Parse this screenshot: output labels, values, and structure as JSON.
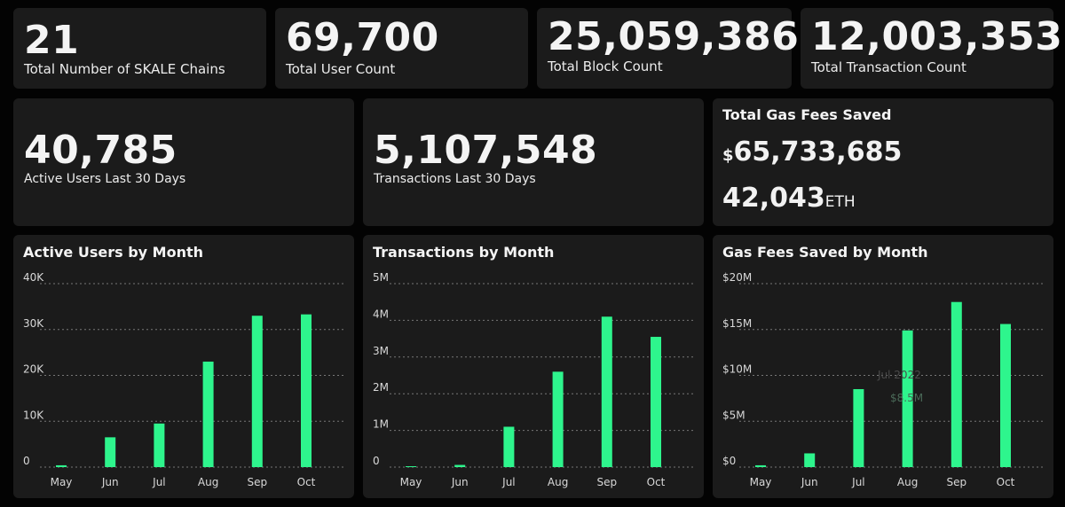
{
  "stats": {
    "chains": {
      "value": "21",
      "label": "Total Number of SKALE Chains"
    },
    "users": {
      "value": "69,700",
      "label": "Total User Count"
    },
    "blocks": {
      "value": "25,059,386",
      "label": "Total Block Count"
    },
    "transactions": {
      "value": "12,003,353",
      "label": "Total Transaction Count"
    },
    "active_30": {
      "value": "40,785",
      "label": "Active Users Last 30 Days"
    },
    "tx_30": {
      "value": "5,107,548",
      "label": "Transactions Last 30 Days"
    }
  },
  "gas": {
    "title": "Total Gas Fees Saved",
    "usd_symbol": "$",
    "usd_value": "65,733,685",
    "eth_value": "42,043",
    "eth_symbol": "ETH"
  },
  "colors": {
    "bar": "#2ef58d",
    "card": "#1b1b1b",
    "grid": "#777777"
  },
  "chart_data": [
    {
      "type": "bar",
      "title": "Active Users by Month",
      "categories": [
        "May",
        "Jun",
        "Jul",
        "Aug",
        "Sep",
        "Oct"
      ],
      "values": [
        400,
        6500,
        9500,
        23000,
        33000,
        33300
      ],
      "yticks": [
        0,
        10000,
        20000,
        30000,
        40000
      ],
      "ytick_labels": [
        "0",
        "10K",
        "20K",
        "30K",
        "40K"
      ],
      "ylim": [
        0,
        40000
      ],
      "grid": true
    },
    {
      "type": "bar",
      "title": "Transactions by Month",
      "categories": [
        "May",
        "Jun",
        "Jul",
        "Aug",
        "Sep",
        "Oct"
      ],
      "values": [
        10000,
        60000,
        1100000,
        2600000,
        4100000,
        3550000
      ],
      "yticks": [
        0,
        1000000,
        2000000,
        3000000,
        4000000,
        5000000
      ],
      "ytick_labels": [
        "0",
        "1M",
        "2M",
        "3M",
        "4M",
        "5M"
      ],
      "ylim": [
        0,
        5000000
      ],
      "grid": true
    },
    {
      "type": "bar",
      "title": "Gas Fees Saved by Month",
      "categories": [
        "May",
        "Jun",
        "Jul",
        "Aug",
        "Sep",
        "Oct"
      ],
      "values": [
        200000,
        1500000,
        8500000,
        14900000,
        18000000,
        15600000
      ],
      "yticks": [
        0,
        5000000,
        10000000,
        15000000,
        20000000
      ],
      "ytick_labels": [
        "$0",
        "$5M",
        "$10M",
        "$15M",
        "$20M"
      ],
      "ylim": [
        0,
        20000000
      ],
      "grid": true,
      "tooltip": {
        "title": "Jul 2022",
        "value": "$8.5M"
      }
    }
  ]
}
